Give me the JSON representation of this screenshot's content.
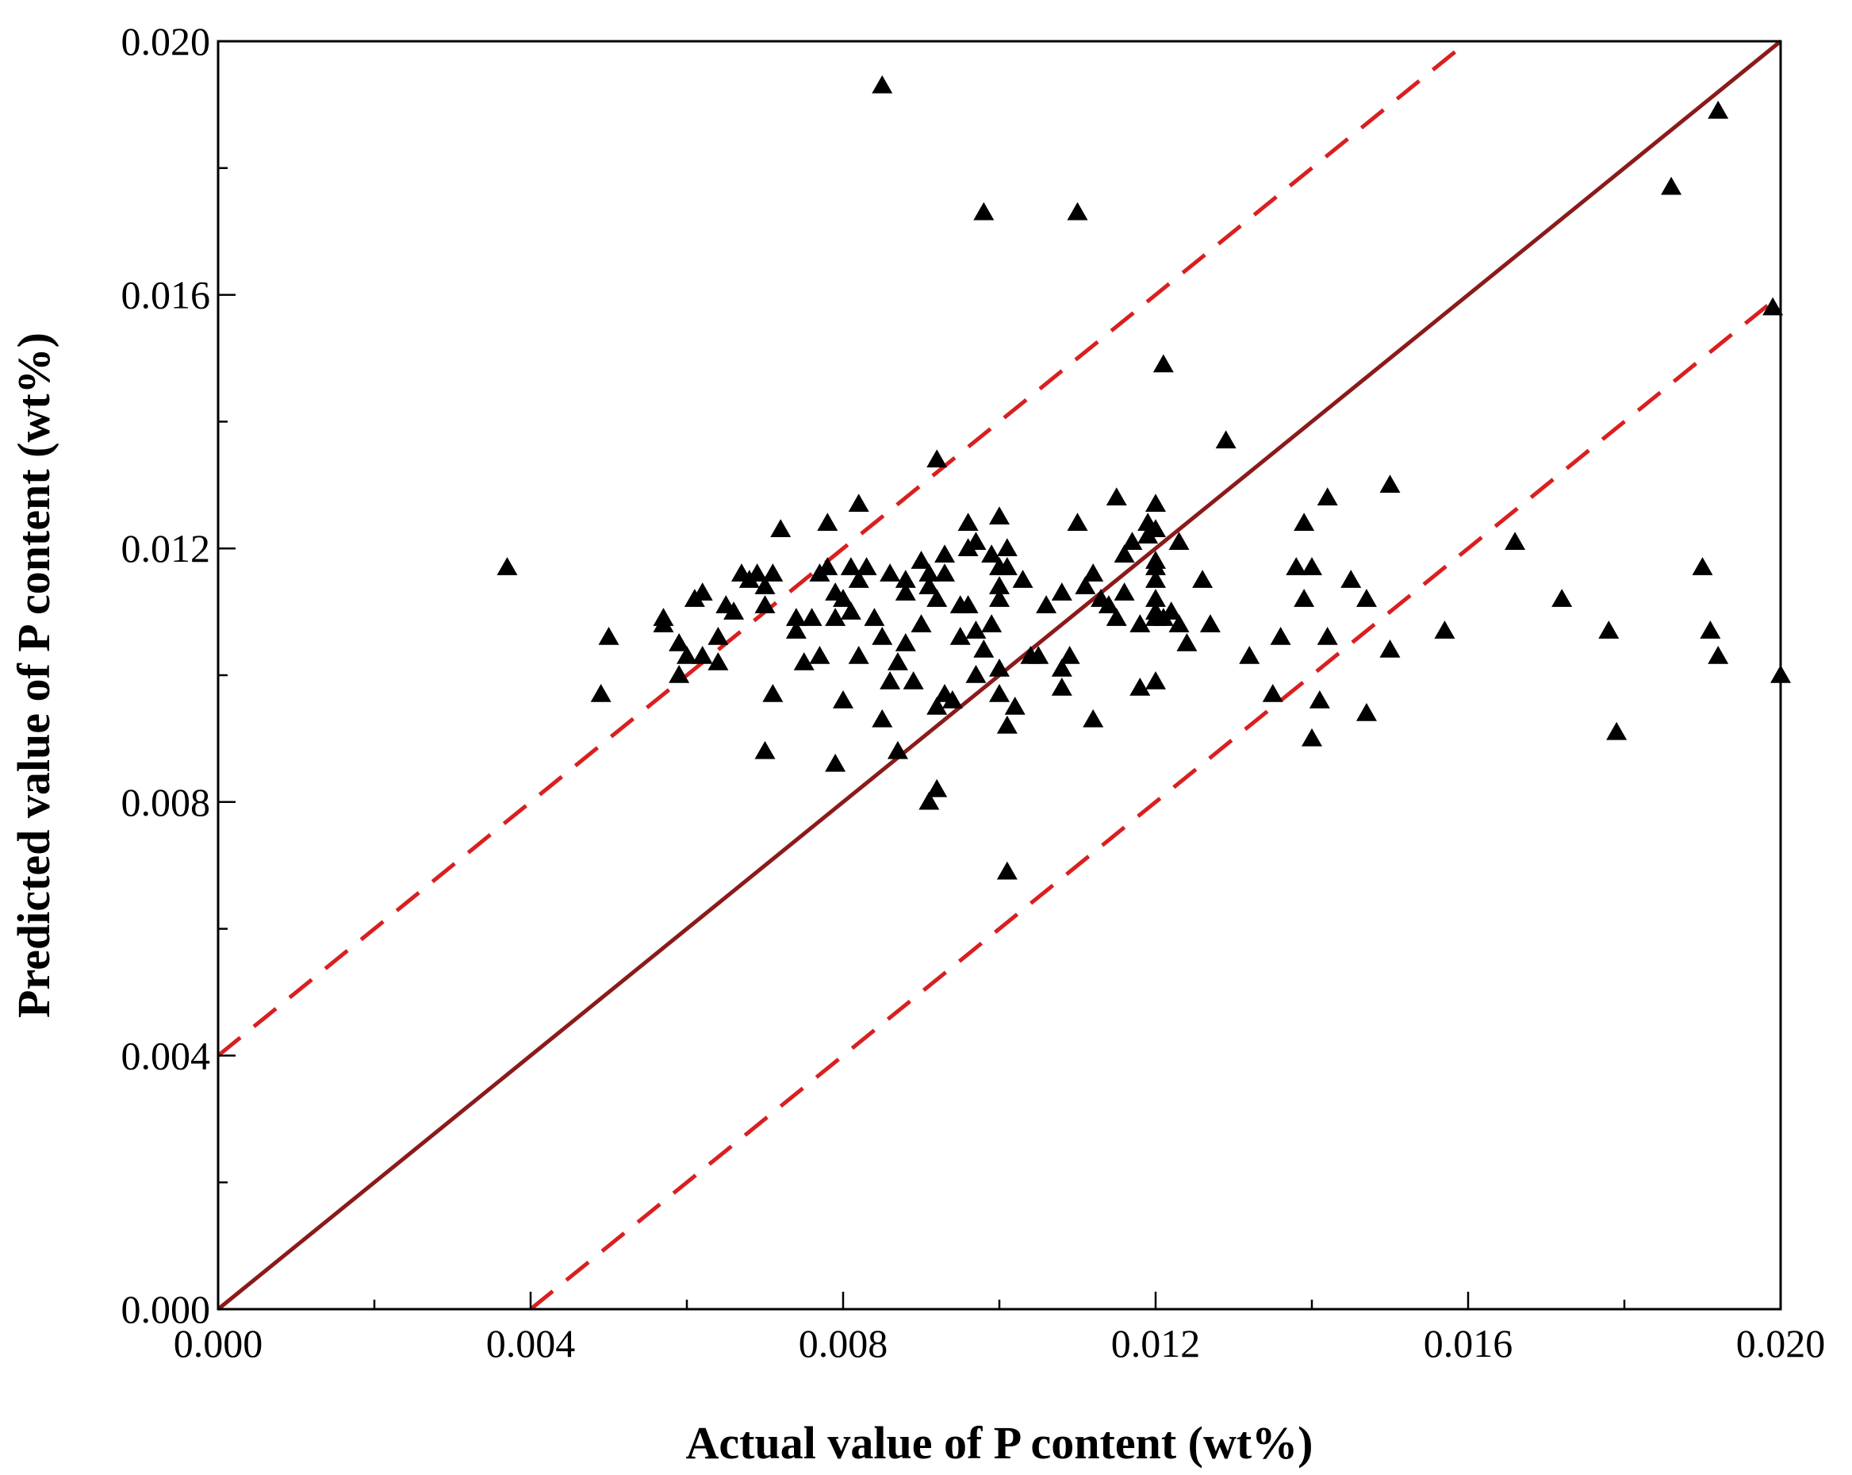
{
  "chart_data": {
    "type": "scatter",
    "title": "",
    "xlabel": "Actual value of P content (wt%)",
    "ylabel": "Predicted value of P content (wt%)",
    "xlim": [
      0.0,
      0.02
    ],
    "ylim": [
      0.0,
      0.02
    ],
    "x_ticks": [
      "0.000",
      "0.004",
      "0.008",
      "0.012",
      "0.016",
      "0.020"
    ],
    "y_ticks": [
      "0.000",
      "0.004",
      "0.008",
      "0.012",
      "0.016",
      "0.020"
    ],
    "grid": false,
    "marker": "triangle",
    "colors": {
      "points": "#000000",
      "identity_line": "#8b1a1a",
      "error_band": "#d91f1f"
    },
    "reference_lines": [
      {
        "name": "y = x",
        "style": "solid",
        "from": [
          0.0,
          0.0
        ],
        "to": [
          0.02,
          0.02
        ]
      },
      {
        "name": "+0.004",
        "style": "dashed",
        "from": [
          0.0,
          0.004
        ],
        "to": [
          0.016,
          0.02
        ]
      },
      {
        "name": "-0.004",
        "style": "dashed",
        "from": [
          0.004,
          0.0
        ],
        "to": [
          0.02,
          0.016
        ]
      }
    ],
    "points": [
      [
        0.0037,
        0.0117
      ],
      [
        0.0049,
        0.0097
      ],
      [
        0.005,
        0.0106
      ],
      [
        0.0057,
        0.0109
      ],
      [
        0.0057,
        0.0108
      ],
      [
        0.0059,
        0.0105
      ],
      [
        0.0059,
        0.01
      ],
      [
        0.006,
        0.0103
      ],
      [
        0.0061,
        0.0112
      ],
      [
        0.0062,
        0.0103
      ],
      [
        0.0062,
        0.0113
      ],
      [
        0.0064,
        0.0106
      ],
      [
        0.0064,
        0.0102
      ],
      [
        0.0065,
        0.0111
      ],
      [
        0.0066,
        0.011
      ],
      [
        0.0067,
        0.0116
      ],
      [
        0.0068,
        0.0115
      ],
      [
        0.0069,
        0.0116
      ],
      [
        0.007,
        0.0114
      ],
      [
        0.007,
        0.0111
      ],
      [
        0.007,
        0.0088
      ],
      [
        0.0071,
        0.0097
      ],
      [
        0.0071,
        0.0116
      ],
      [
        0.0072,
        0.0123
      ],
      [
        0.0074,
        0.0107
      ],
      [
        0.0074,
        0.0109
      ],
      [
        0.0075,
        0.0102
      ],
      [
        0.0076,
        0.0109
      ],
      [
        0.0077,
        0.0116
      ],
      [
        0.0077,
        0.0103
      ],
      [
        0.0078,
        0.0124
      ],
      [
        0.0078,
        0.0117
      ],
      [
        0.0079,
        0.0113
      ],
      [
        0.0079,
        0.0109
      ],
      [
        0.0079,
        0.0086
      ],
      [
        0.008,
        0.0112
      ],
      [
        0.008,
        0.0096
      ],
      [
        0.0081,
        0.0117
      ],
      [
        0.0081,
        0.011
      ],
      [
        0.0082,
        0.0127
      ],
      [
        0.0082,
        0.0103
      ],
      [
        0.0082,
        0.0115
      ],
      [
        0.0083,
        0.0117
      ],
      [
        0.0084,
        0.0109
      ],
      [
        0.0085,
        0.0106
      ],
      [
        0.0085,
        0.0093
      ],
      [
        0.0085,
        0.0193
      ],
      [
        0.0086,
        0.0116
      ],
      [
        0.0086,
        0.0099
      ],
      [
        0.0087,
        0.0102
      ],
      [
        0.0087,
        0.0088
      ],
      [
        0.0088,
        0.0113
      ],
      [
        0.0088,
        0.0115
      ],
      [
        0.0088,
        0.0105
      ],
      [
        0.0089,
        0.0099
      ],
      [
        0.009,
        0.0118
      ],
      [
        0.009,
        0.0108
      ],
      [
        0.0091,
        0.0116
      ],
      [
        0.0091,
        0.0114
      ],
      [
        0.0091,
        0.008
      ],
      [
        0.0092,
        0.0134
      ],
      [
        0.0092,
        0.0112
      ],
      [
        0.0092,
        0.0082
      ],
      [
        0.0092,
        0.0095
      ],
      [
        0.0093,
        0.0119
      ],
      [
        0.0093,
        0.0116
      ],
      [
        0.0093,
        0.0097
      ],
      [
        0.0094,
        0.0096
      ],
      [
        0.0095,
        0.0106
      ],
      [
        0.0095,
        0.0111
      ],
      [
        0.0096,
        0.0124
      ],
      [
        0.0096,
        0.012
      ],
      [
        0.0096,
        0.0111
      ],
      [
        0.0097,
        0.0107
      ],
      [
        0.0097,
        0.01
      ],
      [
        0.0097,
        0.0121
      ],
      [
        0.0098,
        0.0173
      ],
      [
        0.0098,
        0.0104
      ],
      [
        0.0099,
        0.0119
      ],
      [
        0.0099,
        0.0108
      ],
      [
        0.01,
        0.0125
      ],
      [
        0.01,
        0.0117
      ],
      [
        0.01,
        0.0114
      ],
      [
        0.01,
        0.0112
      ],
      [
        0.01,
        0.0101
      ],
      [
        0.01,
        0.0097
      ],
      [
        0.0101,
        0.012
      ],
      [
        0.0101,
        0.0117
      ],
      [
        0.0101,
        0.0092
      ],
      [
        0.0101,
        0.0069
      ],
      [
        0.0102,
        0.0095
      ],
      [
        0.0103,
        0.0115
      ],
      [
        0.0104,
        0.0103
      ],
      [
        0.0105,
        0.0103
      ],
      [
        0.0106,
        0.0111
      ],
      [
        0.0108,
        0.0113
      ],
      [
        0.0108,
        0.0101
      ],
      [
        0.0108,
        0.0098
      ],
      [
        0.0109,
        0.0103
      ],
      [
        0.011,
        0.0173
      ],
      [
        0.011,
        0.0124
      ],
      [
        0.0111,
        0.0114
      ],
      [
        0.0112,
        0.0116
      ],
      [
        0.0112,
        0.0093
      ],
      [
        0.0113,
        0.0112
      ],
      [
        0.0114,
        0.0111
      ],
      [
        0.0115,
        0.0128
      ],
      [
        0.0115,
        0.0109
      ],
      [
        0.0116,
        0.0119
      ],
      [
        0.0116,
        0.0113
      ],
      [
        0.0117,
        0.0121
      ],
      [
        0.0118,
        0.0108
      ],
      [
        0.0118,
        0.0098
      ],
      [
        0.0119,
        0.0124
      ],
      [
        0.0119,
        0.0122
      ],
      [
        0.012,
        0.0127
      ],
      [
        0.012,
        0.0123
      ],
      [
        0.012,
        0.0118
      ],
      [
        0.012,
        0.0117
      ],
      [
        0.012,
        0.0115
      ],
      [
        0.012,
        0.0112
      ],
      [
        0.012,
        0.011
      ],
      [
        0.012,
        0.0109
      ],
      [
        0.012,
        0.0099
      ],
      [
        0.0121,
        0.0149
      ],
      [
        0.0121,
        0.0109
      ],
      [
        0.0122,
        0.011
      ],
      [
        0.0123,
        0.0121
      ],
      [
        0.0123,
        0.0108
      ],
      [
        0.0124,
        0.0105
      ],
      [
        0.0126,
        0.0115
      ],
      [
        0.0127,
        0.0108
      ],
      [
        0.0129,
        0.0137
      ],
      [
        0.0132,
        0.0103
      ],
      [
        0.0135,
        0.0097
      ],
      [
        0.0136,
        0.0106
      ],
      [
        0.0138,
        0.0117
      ],
      [
        0.0139,
        0.0124
      ],
      [
        0.0139,
        0.0112
      ],
      [
        0.014,
        0.0117
      ],
      [
        0.014,
        0.009
      ],
      [
        0.0141,
        0.0096
      ],
      [
        0.0142,
        0.0128
      ],
      [
        0.0142,
        0.0106
      ],
      [
        0.0145,
        0.0115
      ],
      [
        0.0147,
        0.0112
      ],
      [
        0.0147,
        0.0094
      ],
      [
        0.015,
        0.013
      ],
      [
        0.015,
        0.0104
      ],
      [
        0.0157,
        0.0107
      ],
      [
        0.0166,
        0.0121
      ],
      [
        0.0172,
        0.0112
      ],
      [
        0.0178,
        0.0107
      ],
      [
        0.0179,
        0.0091
      ],
      [
        0.0186,
        0.0177
      ],
      [
        0.019,
        0.0117
      ],
      [
        0.0191,
        0.0107
      ],
      [
        0.0192,
        0.0189
      ],
      [
        0.0192,
        0.0103
      ],
      [
        0.0199,
        0.0158
      ],
      [
        0.02,
        0.01
      ]
    ]
  }
}
